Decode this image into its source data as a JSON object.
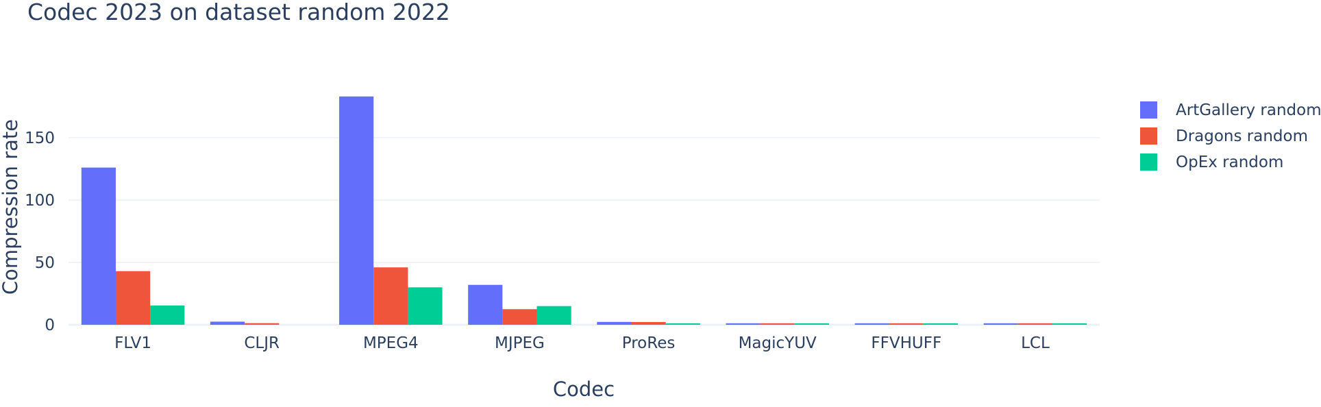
{
  "chart_data": {
    "type": "bar",
    "title": "Codec 2023 on dataset random 2022",
    "xlabel": "Codec",
    "ylabel": "Compression rate",
    "categories": [
      "FLV1",
      "CLJR",
      "MPEG4",
      "MJPEG",
      "ProRes",
      "MagicYUV",
      "FFVHUFF",
      "LCL"
    ],
    "series": [
      {
        "name": "ArtGallery random",
        "color": "#636efa",
        "values": [
          126,
          2.5,
          183,
          32,
          2.3,
          1.2,
          1.2,
          1.2
        ]
      },
      {
        "name": "Dragons random",
        "color": "#ef553b",
        "values": [
          43,
          1.3,
          46,
          12.5,
          2.2,
          1.2,
          1.2,
          1.2
        ]
      },
      {
        "name": "OpEx random",
        "color": "#00cc96",
        "values": [
          15.5,
          0,
          30,
          15,
          1.2,
          1.2,
          1.2,
          1.2
        ]
      }
    ],
    "ylim": [
      0,
      190
    ],
    "yticks": [
      0,
      50,
      100,
      150
    ],
    "grid": true,
    "legend": "top-right"
  }
}
